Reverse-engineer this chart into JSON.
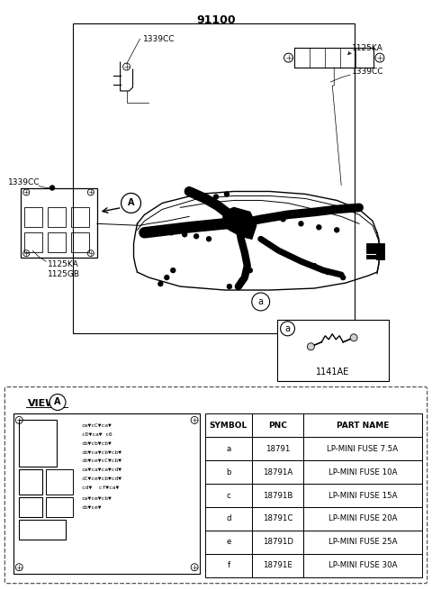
{
  "title": "91100",
  "bg_color": "#ffffff",
  "diagram_labels": {
    "top_label": "91100",
    "label_1339CC_top": "1339CC",
    "label_1125KA_right": "1125KA",
    "label_1339CC_right": "1339CC",
    "label_1339CC_left": "1339CC",
    "label_1125KA_bottom": "1125KA",
    "label_1125GB": "1125GB",
    "label_a_circle": "a",
    "label_1141AE": "1141AE",
    "view_title": "VIEW",
    "table_headers": [
      "SYMBOL",
      "PNC",
      "PART NAME"
    ],
    "table_rows": [
      [
        "a",
        "18791",
        "LP-MINI FUSE 7.5A"
      ],
      [
        "b",
        "18791A",
        "LP-MINI FUSE 10A"
      ],
      [
        "c",
        "18791B",
        "LP-MINI FUSE 15A"
      ],
      [
        "d",
        "18791C",
        "LP-MINI FUSE 20A"
      ],
      [
        "e",
        "18791D",
        "LP-MINI FUSE 25A"
      ],
      [
        "f",
        "18791E",
        "LP-MINI FUSE 30A"
      ]
    ]
  },
  "colors": {
    "line": "#000000",
    "fill": "#000000",
    "bg": "#ffffff",
    "gray_light": "#e0e0e0",
    "dashed_border": "#555555"
  },
  "figsize": [
    4.8,
    6.55
  ],
  "dpi": 100
}
